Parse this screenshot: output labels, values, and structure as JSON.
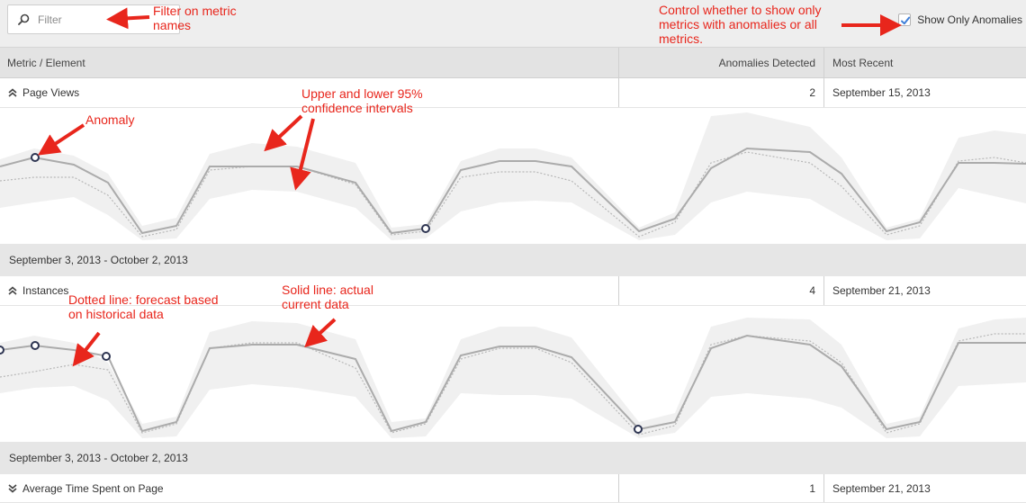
{
  "filter": {
    "placeholder": "Filter",
    "value": ""
  },
  "only_anomalies": {
    "label": "Show Only Anomalies",
    "checked": true
  },
  "table_header": {
    "metric": "Metric / Element",
    "anomalies": "Anomalies Detected",
    "recent": "Most Recent"
  },
  "metrics": [
    {
      "name": "Page Views",
      "anomalies": "2",
      "recent": "September 15, 2013",
      "range": "September 3, 2013 - October 2, 2013",
      "expanded": true
    },
    {
      "name": "Instances",
      "anomalies": "4",
      "recent": "September 21, 2013",
      "range": "September 3, 2013 - October 2, 2013",
      "expanded": true
    },
    {
      "name": "Average Time Spent on Page",
      "anomalies": "1",
      "recent": "September 21, 2013",
      "expanded": false
    }
  ],
  "annotations": {
    "filter": "Filter on metric names",
    "control": "Control whether to show only metrics with anomalies or all metrics.",
    "anomaly": "Anomaly",
    "confidence": "Upper and lower 95% confidence intervals",
    "dotted": "Dotted line: forecast based on historical data",
    "solid": "Solid line: actual current data"
  },
  "colors": {
    "annotation": "#e8261c",
    "actual_line": "#ababab",
    "forecast_line": "#b8b8b8",
    "confidence_band": "#f0f0f0",
    "anomaly_marker": "#2e3552",
    "checkbox": "#3f7fd8"
  },
  "icons": {
    "filter": "search-icon",
    "checkbox": "checkmark-icon",
    "expanded": "chevron-double-up-icon",
    "collapsed": "chevron-double-down-icon",
    "annotation": "arrow-icon"
  }
}
